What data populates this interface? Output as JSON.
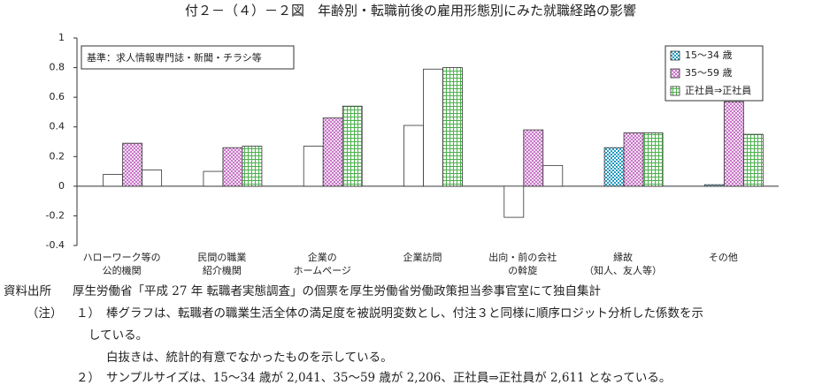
{
  "chart_data": {
    "type": "bar",
    "title": "付２－（４）－２図　年齢別・転職前後の雇用形態別にみた就職経路の影響",
    "annotation": "基準：求人情報専門誌・新聞・チラシ等",
    "categories": [
      [
        "ハローワーク等の",
        "公的機関"
      ],
      [
        "民間の職業",
        "紹介機関"
      ],
      [
        "企業の",
        "ホームページ"
      ],
      [
        "企業訪問"
      ],
      [
        "出向・前の会社",
        "の斡旋"
      ],
      [
        "縁故",
        "（知人、友人等）"
      ],
      [
        "その他"
      ]
    ],
    "series": [
      {
        "name": "15～34 歳",
        "color": "#1f9ac0",
        "values": [
          0.08,
          0.1,
          0.27,
          0.41,
          -0.21,
          0.26,
          0.01
        ],
        "significant": [
          false,
          false,
          false,
          false,
          false,
          true,
          true
        ]
      },
      {
        "name": "35～59 歳",
        "color": "#c060c0",
        "values": [
          0.29,
          0.26,
          0.46,
          0.79,
          0.38,
          0.36,
          0.57
        ],
        "significant": [
          true,
          true,
          true,
          false,
          true,
          true,
          true
        ]
      },
      {
        "name": "正社員⇒正社員",
        "color": "#4cb04c",
        "values": [
          0.11,
          0.27,
          0.54,
          0.8,
          0.14,
          0.36,
          0.35
        ],
        "significant": [
          false,
          true,
          true,
          true,
          false,
          true,
          true
        ]
      }
    ],
    "ylim": [
      -0.4,
      1
    ],
    "yticks": [
      1,
      0.8,
      0.6,
      0.4,
      0.2,
      0,
      -0.2,
      -0.4
    ],
    "grid": false,
    "legend": "top-right"
  },
  "notes": {
    "source_label": "資料出所",
    "source_text": "厚生労働省「平成 27 年 転職者実態調査」の個票を厚生労働省労働政策担当参事官室にて独自集計",
    "note_label": "（注）",
    "items": [
      {
        "num": "１）",
        "lines": [
          "棒グラフは、転職者の職業生活全体の満足度を被説明変数とし、付注３と同様に順序ロジット分析した係数を示",
          "している。",
          "白抜きは、統計的有意でなかったものを示している。"
        ]
      },
      {
        "num": "２）",
        "lines": [
          "サンプルサイズは、15～34 歳が 2,041、35～59 歳が 2,206、正社員⇒正社員が 2,611 となっている。"
        ]
      }
    ]
  }
}
